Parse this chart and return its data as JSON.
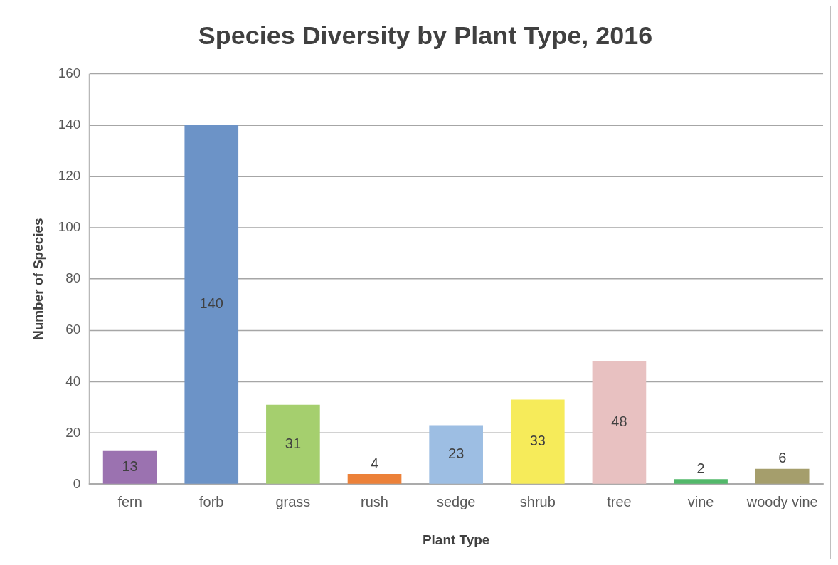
{
  "chart_data": {
    "type": "bar",
    "title": "Species Diversity by Plant Type, 2016",
    "xlabel": "Plant Type",
    "ylabel": "Number of Species",
    "categories": [
      "fern",
      "forb",
      "grass",
      "rush",
      "sedge",
      "shrub",
      "tree",
      "vine",
      "woody vine"
    ],
    "values": [
      13,
      140,
      31,
      4,
      23,
      33,
      48,
      2,
      6
    ],
    "colors": [
      "#9b72b0",
      "#6c93c7",
      "#a5cf6e",
      "#ec8139",
      "#9dbee3",
      "#f6eb5a",
      "#e8c1c1",
      "#52b86a",
      "#a59e6c"
    ],
    "ylim": [
      0,
      160
    ],
    "yticks": [
      0,
      20,
      40,
      60,
      80,
      100,
      120,
      140,
      160
    ],
    "grid": "y",
    "data_labels": true,
    "legend": false
  }
}
